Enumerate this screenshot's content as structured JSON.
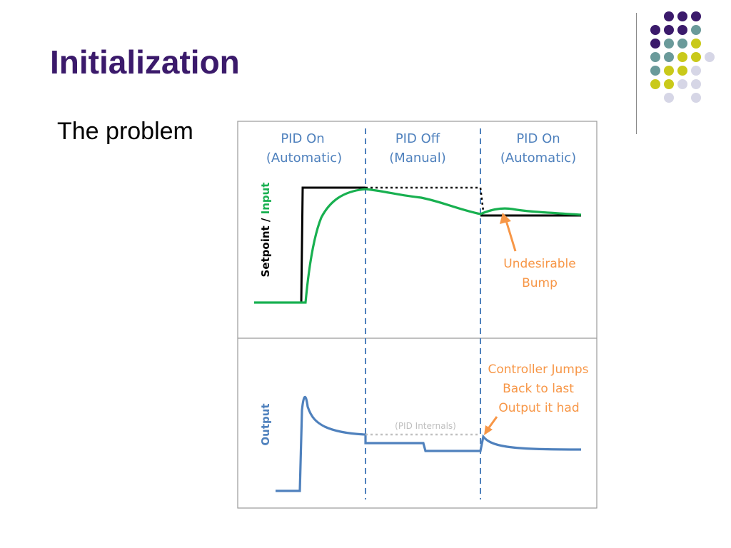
{
  "slide": {
    "title": "Initialization",
    "bullet": "The problem"
  },
  "diagram": {
    "phases": [
      {
        "line1": "PID On",
        "line2": "(Automatic)"
      },
      {
        "line1": "PID Off",
        "line2": "(Manual)"
      },
      {
        "line1": "PID On",
        "line2": "(Automatic)"
      }
    ],
    "top_ylabel_part1": "Setpoint / ",
    "top_ylabel_part2": "Input",
    "bottom_ylabel": "Output",
    "annotation_bump": [
      "Undesirable",
      "Bump"
    ],
    "annotation_jump": [
      "Controller Jumps",
      "Back to last",
      "Output it had"
    ],
    "pid_internals": "(PID Internals)",
    "colors": {
      "setpoint": "#000000",
      "input": "#18b050",
      "output": "#4f81bd",
      "annotation": "#f79646",
      "phase_text": "#4f81bd",
      "dashed_divider": "#4f81bd",
      "internals": "#bfbfbf",
      "title": "#3b1a6b"
    }
  },
  "decor": {
    "dot_colors": [
      "#3b1a6b",
      "#6a9a9a",
      "#c9c91a",
      "#d6d6e6"
    ]
  }
}
